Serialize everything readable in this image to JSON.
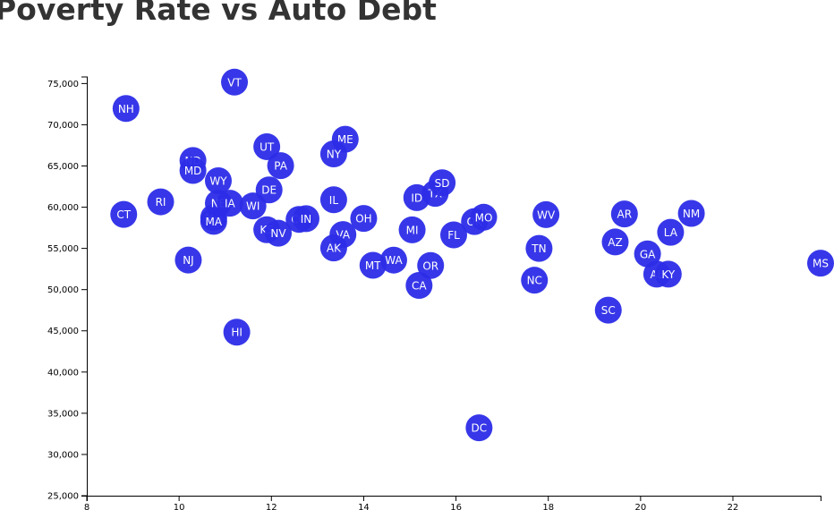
{
  "chart_data": {
    "type": "scatter",
    "title": "Poverty Rate vs Auto Debt",
    "xlabel": "",
    "ylabel": "",
    "xlim": [
      8,
      23.9
    ],
    "ylim": [
      25000,
      75800
    ],
    "x_ticks": [
      "8",
      "10",
      "12",
      "14",
      "16",
      "18",
      "20",
      "22"
    ],
    "y_ticks": [
      "25,000",
      "30,000",
      "35,000",
      "40,000",
      "45,000",
      "50,000",
      "55,000",
      "60,000",
      "65,000",
      "70,000",
      "75,000"
    ],
    "grid": false,
    "marker_color": "#2c2ce8",
    "points": [
      {
        "label": "NH",
        "x": 8.85,
        "y": 71970
      },
      {
        "label": "VT",
        "x": 11.2,
        "y": 75170
      },
      {
        "label": "CT",
        "x": 8.8,
        "y": 59120
      },
      {
        "label": "RI",
        "x": 9.6,
        "y": 60650
      },
      {
        "label": "NJ",
        "x": 10.2,
        "y": 53590
      },
      {
        "label": "ND",
        "x": 10.3,
        "y": 65670
      },
      {
        "label": "MD",
        "x": 10.3,
        "y": 64460
      },
      {
        "label": "WY",
        "x": 10.85,
        "y": 63210
      },
      {
        "label": "MN",
        "x": 10.75,
        "y": 58740
      },
      {
        "label": "MA",
        "x": 10.75,
        "y": 58280
      },
      {
        "label": "NE",
        "x": 10.85,
        "y": 60480
      },
      {
        "label": "IA",
        "x": 11.1,
        "y": 60480
      },
      {
        "label": "WI",
        "x": 11.6,
        "y": 60150
      },
      {
        "label": "HI",
        "x": 11.25,
        "y": 44840
      },
      {
        "label": "UT",
        "x": 11.9,
        "y": 67340
      },
      {
        "label": "PA",
        "x": 12.2,
        "y": 65040
      },
      {
        "label": "DE",
        "x": 11.95,
        "y": 62100
      },
      {
        "label": "KS",
        "x": 11.9,
        "y": 57270
      },
      {
        "label": "NV",
        "x": 12.15,
        "y": 56840
      },
      {
        "label": "CO",
        "x": 12.6,
        "y": 58520
      },
      {
        "label": "IN",
        "x": 12.75,
        "y": 58610
      },
      {
        "label": "ME",
        "x": 13.6,
        "y": 68240
      },
      {
        "label": "NY",
        "x": 13.35,
        "y": 66460
      },
      {
        "label": "IL",
        "x": 13.35,
        "y": 60900
      },
      {
        "label": "VA",
        "x": 13.55,
        "y": 56680
      },
      {
        "label": "AK",
        "x": 13.35,
        "y": 55050
      },
      {
        "label": "OH",
        "x": 14.0,
        "y": 58640
      },
      {
        "label": "MT",
        "x": 14.2,
        "y": 52950
      },
      {
        "label": "WA",
        "x": 14.65,
        "y": 53580
      },
      {
        "label": "MI",
        "x": 15.05,
        "y": 57250
      },
      {
        "label": "ID",
        "x": 15.15,
        "y": 61160
      },
      {
        "label": "TX",
        "x": 15.55,
        "y": 61680
      },
      {
        "label": "SD",
        "x": 15.7,
        "y": 62960
      },
      {
        "label": "OR",
        "x": 15.45,
        "y": 52920
      },
      {
        "label": "CA",
        "x": 15.2,
        "y": 50510
      },
      {
        "label": "FL",
        "x": 15.95,
        "y": 56640
      },
      {
        "label": "OK",
        "x": 16.4,
        "y": 58260
      },
      {
        "label": "MO",
        "x": 16.6,
        "y": 58780
      },
      {
        "label": "DC",
        "x": 16.5,
        "y": 33240
      },
      {
        "label": "WV",
        "x": 17.95,
        "y": 59100
      },
      {
        "label": "TN",
        "x": 17.8,
        "y": 55000
      },
      {
        "label": "NC",
        "x": 17.7,
        "y": 51140
      },
      {
        "label": "AR",
        "x": 19.65,
        "y": 59180
      },
      {
        "label": "AZ",
        "x": 19.45,
        "y": 55780
      },
      {
        "label": "GA",
        "x": 20.15,
        "y": 54330
      },
      {
        "label": "AL",
        "x": 20.35,
        "y": 51880
      },
      {
        "label": "KY",
        "x": 20.6,
        "y": 51880
      },
      {
        "label": "LA",
        "x": 20.65,
        "y": 56950
      },
      {
        "label": "NM",
        "x": 21.1,
        "y": 59250
      },
      {
        "label": "SC",
        "x": 19.3,
        "y": 47510
      },
      {
        "label": "MS",
        "x": 23.9,
        "y": 53210
      }
    ]
  }
}
